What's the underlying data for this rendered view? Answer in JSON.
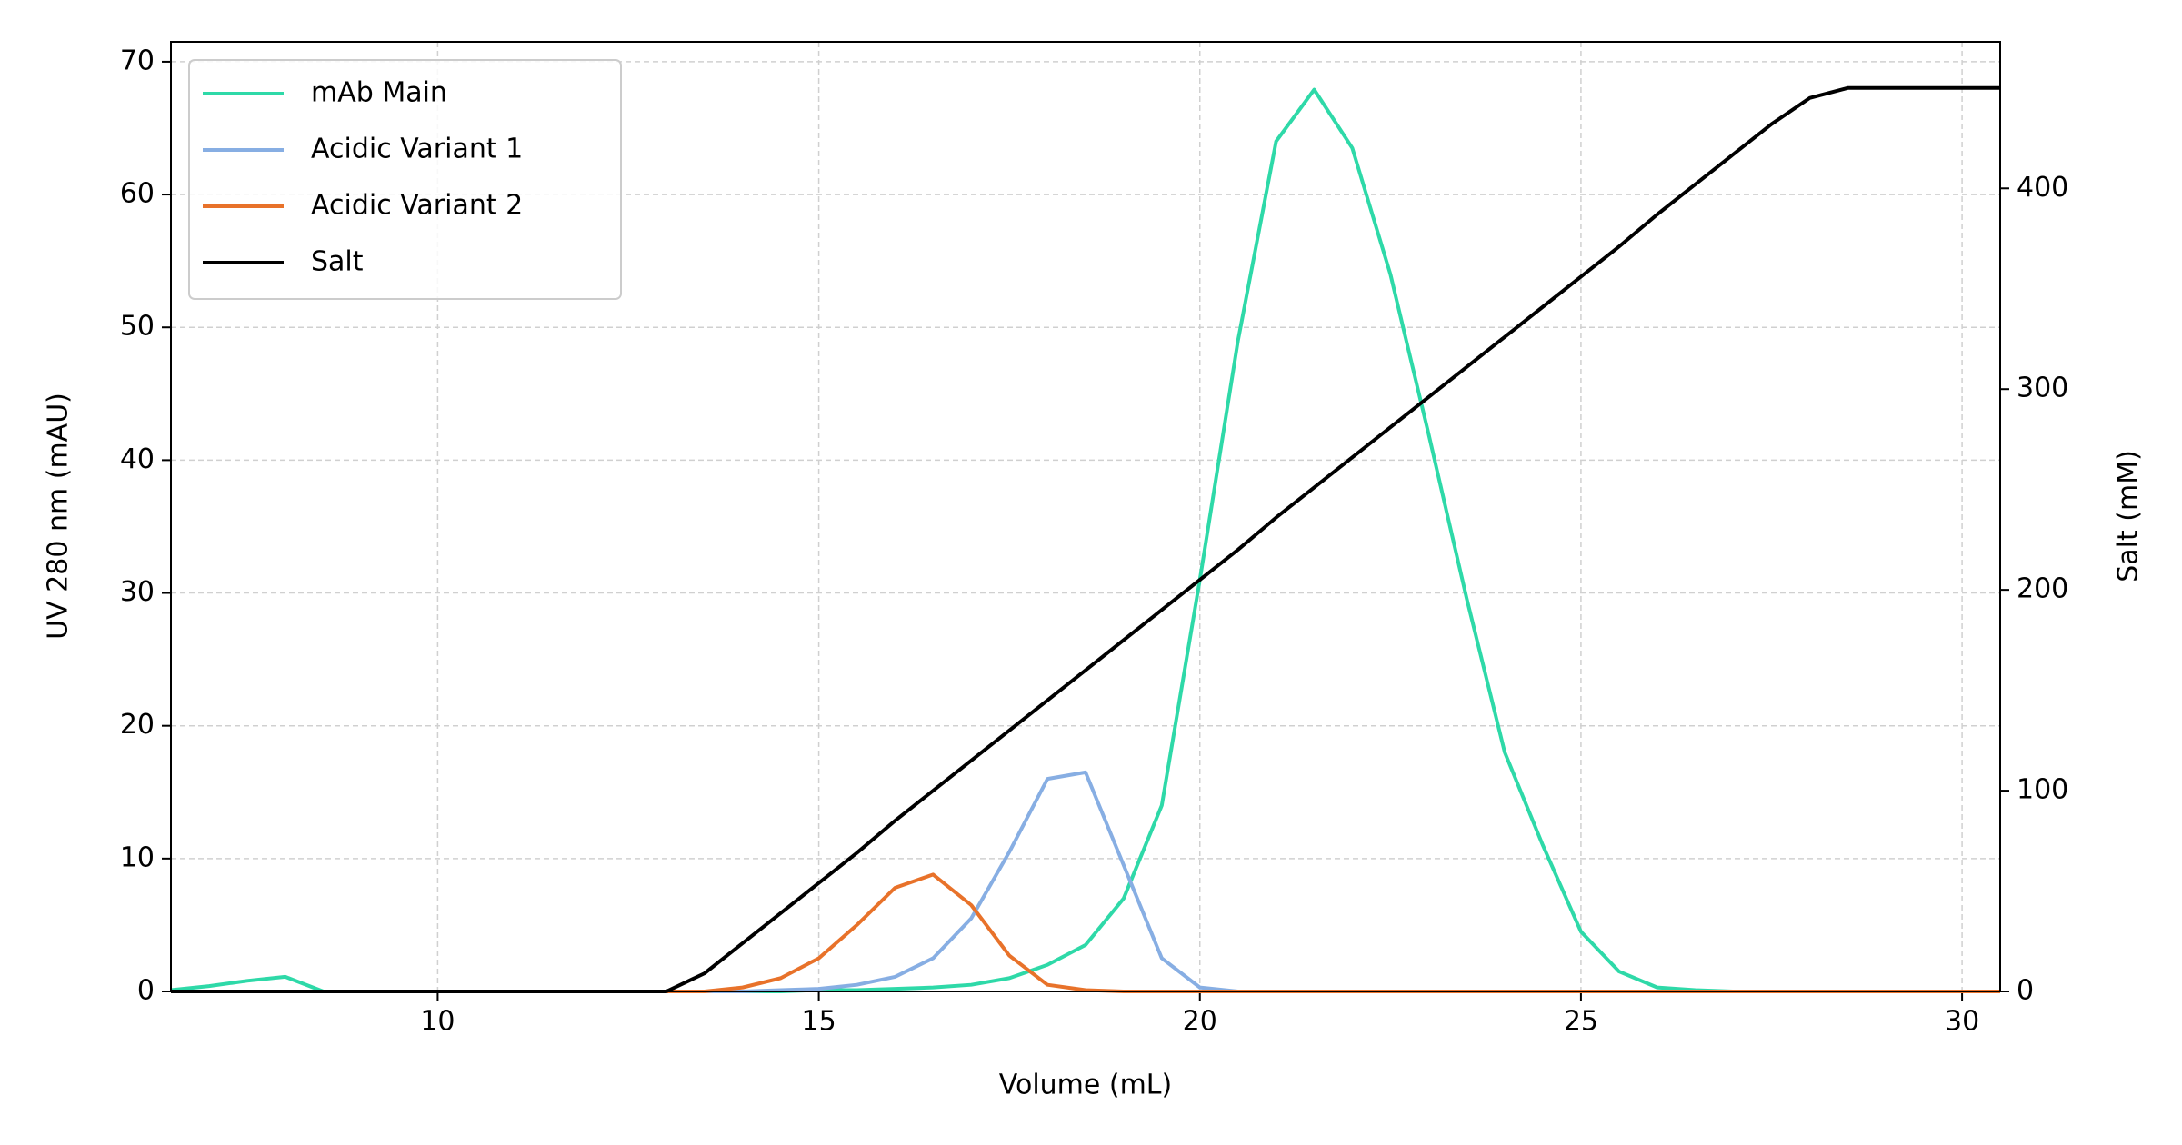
{
  "chart_data": {
    "type": "line",
    "x_label": "Volume (mL)",
    "y_label": "UV 280 nm (mAU)",
    "y2_label": "Salt (mM)",
    "x": [
      6.5,
      7,
      7.5,
      8,
      8.5,
      9,
      9.5,
      10,
      10.5,
      11,
      11.5,
      12,
      12.5,
      13,
      13.5,
      14,
      14.5,
      15,
      15.5,
      16,
      16.5,
      17,
      17.5,
      18,
      18.5,
      19,
      19.5,
      20,
      20.5,
      21,
      21.5,
      22,
      22.5,
      23,
      23.5,
      24,
      24.5,
      25,
      25.5,
      26,
      26.5,
      27,
      27.5,
      28,
      28.5,
      29,
      29.5,
      30,
      30.5
    ],
    "series": [
      {
        "name": "mAb Main",
        "color": "#2ed9a8",
        "values": [
          0.1,
          0.4,
          0.8,
          1.1,
          0,
          0,
          0,
          0,
          0,
          0,
          0,
          0,
          0,
          0,
          0,
          0,
          0,
          0.1,
          0.1,
          0.2,
          0.3,
          0.5,
          1,
          2,
          3.5,
          7,
          14,
          31,
          49,
          64,
          67.9,
          63.5,
          54,
          42,
          29.6,
          18,
          11,
          4.5,
          1.5,
          0.3,
          0.1,
          0,
          0,
          0,
          0,
          0,
          0,
          0,
          0
        ]
      },
      {
        "name": "Acidic Variant 1",
        "color": "#87aee3",
        "values": [
          0,
          0,
          0,
          0,
          0,
          0,
          0,
          0,
          0,
          0,
          0,
          0,
          0,
          0,
          0,
          0,
          0.1,
          0.2,
          0.5,
          1.1,
          2.5,
          5.5,
          10.5,
          16,
          16.5,
          9.5,
          2.5,
          0.3,
          0,
          0,
          0,
          0,
          0,
          0,
          0,
          0,
          0,
          0,
          0,
          0,
          0,
          0,
          0,
          0,
          0,
          0,
          0,
          0,
          0
        ]
      },
      {
        "name": "Acidic Variant 2",
        "color": "#e8722a",
        "values": [
          0,
          0,
          0,
          0,
          0,
          0,
          0,
          0,
          0,
          0,
          0,
          0,
          0,
          0,
          0,
          0.3,
          1,
          2.5,
          5,
          7.8,
          8.8,
          6.5,
          2.7,
          0.5,
          0.1,
          0,
          0,
          0,
          0,
          0,
          0,
          0,
          0,
          0,
          0,
          0,
          0,
          0,
          0,
          0,
          0,
          0,
          0,
          0,
          0,
          0,
          0,
          0,
          0
        ]
      },
      {
        "name": "Salt",
        "color": "#000000",
        "axis": "y2",
        "values": [
          0,
          0,
          0,
          0,
          0,
          0,
          0,
          0,
          0,
          0,
          0,
          0,
          0,
          0,
          9,
          24,
          39,
          54,
          69,
          85,
          100,
          115,
          130,
          145,
          160,
          175,
          190,
          205,
          220,
          236,
          251,
          266,
          281,
          296,
          311,
          326,
          341,
          356,
          371,
          387,
          402,
          417,
          432,
          445,
          450,
          450,
          450,
          450,
          450
        ]
      }
    ],
    "xlim": [
      6.5,
      30.5
    ],
    "xticks": [
      10,
      15,
      20,
      25,
      30
    ],
    "ylim": [
      0,
      71.5
    ],
    "yticks": [
      0,
      10,
      20,
      30,
      40,
      50,
      60,
      70
    ],
    "y2lim": [
      0,
      473
    ],
    "y2ticks": [
      0,
      100,
      200,
      300,
      400
    ],
    "grid": true,
    "legend": "upper-left"
  }
}
